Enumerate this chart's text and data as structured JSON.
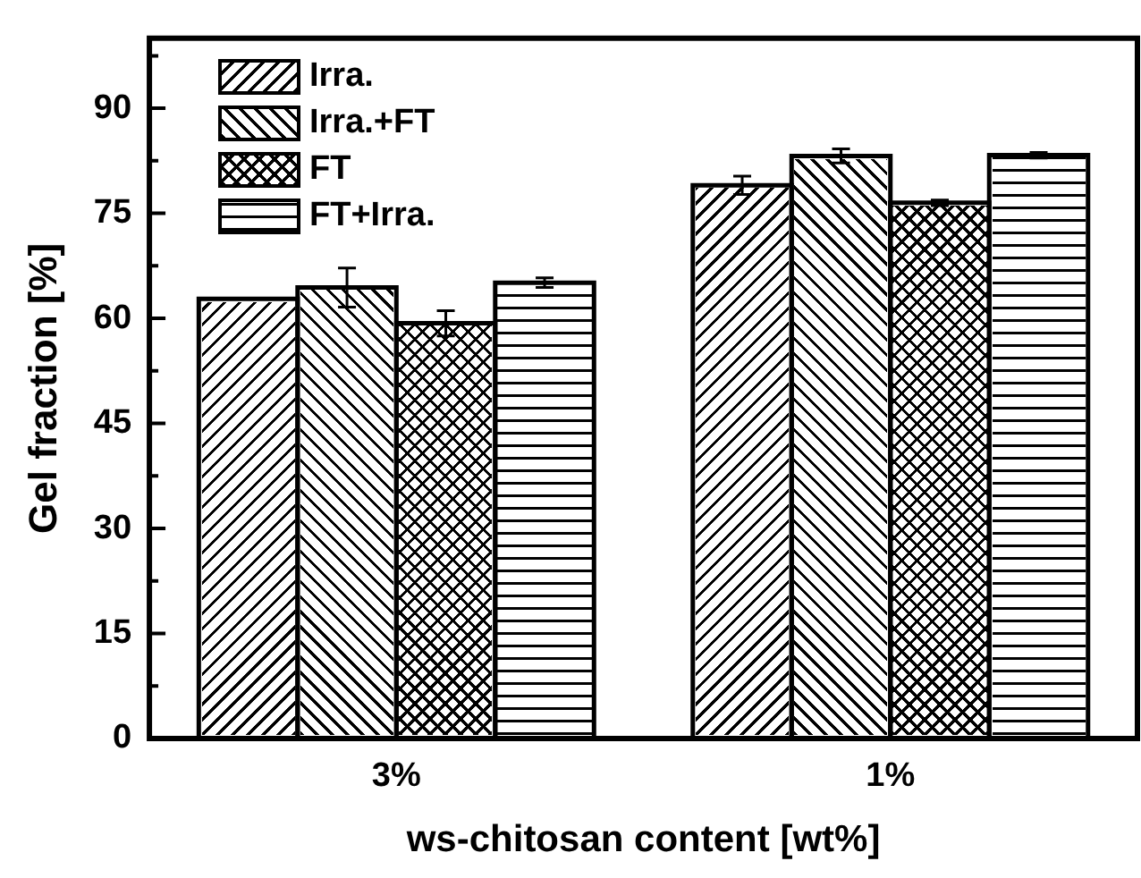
{
  "chart_data": {
    "type": "bar",
    "xlabel": "ws-chitosan content [wt%]",
    "ylabel": "Gel fraction [%]",
    "categories": [
      "3%",
      "1%"
    ],
    "series": [
      {
        "name": "Irra.",
        "color": "#000000",
        "values": [
          62.8,
          79.0
        ],
        "errors": [
          null,
          1.3
        ]
      },
      {
        "name": "Irra.+FT",
        "color": "#000000",
        "values": [
          64.4,
          83.2
        ],
        "errors": [
          2.8,
          1.0
        ]
      },
      {
        "name": "FT",
        "color": "#000000",
        "values": [
          59.3,
          76.5
        ],
        "errors": [
          1.8,
          0.4
        ]
      },
      {
        "name": "FT+Irra.",
        "color": "#000000",
        "values": [
          65.1,
          83.3
        ],
        "errors": [
          0.7,
          0.4
        ]
      }
    ],
    "ylim": [
      0,
      100
    ],
    "yticks": [
      0,
      {
        "value": 7.5,
        "label": null
      },
      15,
      {
        "value": 22.5,
        "label": null
      },
      30,
      {
        "value": 37.5,
        "label": null
      },
      45,
      {
        "value": 52.5,
        "label": null
      },
      60,
      {
        "value": 67.5,
        "label": null
      },
      75,
      {
        "value": 82.5,
        "label": null
      },
      90,
      {
        "value": 97.5,
        "label": null
      }
    ],
    "grid": false,
    "legend": "top left"
  }
}
